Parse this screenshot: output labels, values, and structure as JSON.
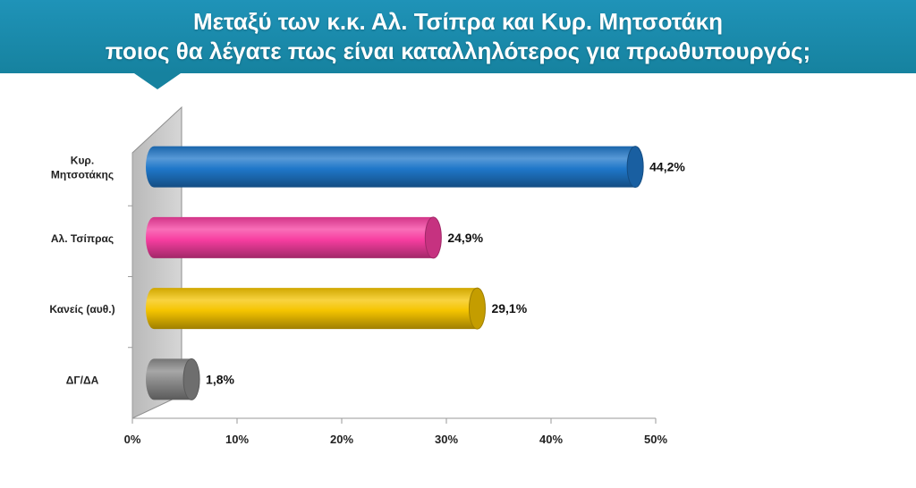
{
  "header": {
    "title_line1": "Μεταξύ των κ.κ. Αλ. Τσίπρα και Κυρ. Μητσοτάκη",
    "title_line2": "ποιος θα λέγατε πως είναι καταλληλότερος για πρωθυπουργός;",
    "background_color": "#1a8aab"
  },
  "chart_data": {
    "type": "bar",
    "orientation": "horizontal",
    "style": "3d-cylinder",
    "categories": [
      [
        "Κυρ.",
        "Μητσοτάκης"
      ],
      [
        "Αλ. Τσίπρας"
      ],
      [
        "Κανείς (αυθ.)"
      ],
      [
        "ΔΓ/ΔΑ"
      ]
    ],
    "values": [
      44.2,
      24.9,
      29.1,
      1.8
    ],
    "value_labels": [
      "44,2%",
      "24,9%",
      "29,1%",
      "1,8%"
    ],
    "colors": [
      "#1f77c9",
      "#f73ea0",
      "#f5c400",
      "#8a8a8a"
    ],
    "xlim": [
      0,
      50
    ],
    "x_ticks": [
      0,
      10,
      20,
      30,
      40,
      50
    ],
    "x_tick_labels": [
      "0%",
      "10%",
      "20%",
      "30%",
      "40%",
      "50%"
    ],
    "grid": false,
    "legend": "none"
  }
}
